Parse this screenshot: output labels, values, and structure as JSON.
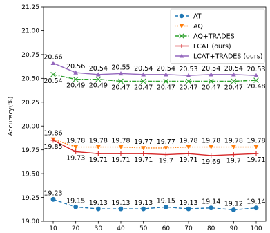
{
  "chart_data": {
    "type": "line",
    "xlabel": "",
    "ylabel": "Accuracy(%)",
    "x": [
      10,
      20,
      30,
      40,
      50,
      60,
      70,
      80,
      90,
      100
    ],
    "ylim": [
      19.0,
      21.25
    ],
    "yticks": [
      "19.00",
      "19.25",
      "19.50",
      "19.75",
      "20.00",
      "20.25",
      "20.50",
      "20.75",
      "21.00",
      "21.25"
    ],
    "ytick_values": [
      19.0,
      19.25,
      19.5,
      19.75,
      20.0,
      20.25,
      20.5,
      20.75,
      21.0,
      21.25
    ],
    "xticks": [
      "10",
      "20",
      "30",
      "40",
      "50",
      "60",
      "70",
      "80",
      "90",
      "100"
    ],
    "legend_position": "top-right",
    "grid": false,
    "series": [
      {
        "name": "AT",
        "color": "#1f77b4",
        "line_style": "dashed",
        "marker": "circle",
        "values": [
          19.23,
          19.15,
          19.13,
          19.13,
          19.13,
          19.15,
          19.13,
          19.14,
          19.12,
          19.14
        ],
        "labels": [
          "19.23",
          "19.15",
          "19.13",
          "19.13",
          "19.13",
          "19.15",
          "19.13",
          "19.14",
          "19.12",
          "19.14"
        ],
        "label_side": "above"
      },
      {
        "name": "AQ",
        "color": "#ff7f0e",
        "line_style": "dotted",
        "marker": "triangle-down",
        "values": [
          19.86,
          19.78,
          19.78,
          19.78,
          19.77,
          19.77,
          19.78,
          19.78,
          19.78,
          19.78
        ],
        "labels": [
          "19.86",
          "19.78",
          "19.78",
          "19.78",
          "19.77",
          "19.77",
          "19.78",
          "19.78",
          "19.78",
          "19.78"
        ],
        "label_side": "above"
      },
      {
        "name": "AQ+TRADES",
        "color": "#2ca02c",
        "line_style": "dashdot",
        "marker": "x",
        "values": [
          20.54,
          20.49,
          20.49,
          20.47,
          20.47,
          20.47,
          20.47,
          20.47,
          20.47,
          20.48
        ],
        "labels": [
          "20.54",
          "20.49",
          "20.49",
          "20.47",
          "20.47",
          "20.47",
          "20.47",
          "20.47",
          "20.47",
          "20.48"
        ],
        "label_side": "below"
      },
      {
        "name": "LCAT (ours)",
        "color": "#d62728",
        "line_style": "solid",
        "marker": "plus",
        "values": [
          19.85,
          19.73,
          19.71,
          19.71,
          19.71,
          19.7,
          19.71,
          19.69,
          19.7,
          19.71
        ],
        "labels": [
          "19.85",
          "19.73",
          "19.71",
          "19.71",
          "19.71",
          "19.7",
          "19.71",
          "19.69",
          "19.7",
          "19.71"
        ],
        "label_side": "below"
      },
      {
        "name": "LCAT+TRADES (ours)",
        "color": "#9467bd",
        "line_style": "solid",
        "marker": "triangle-up",
        "values": [
          20.66,
          20.56,
          20.54,
          20.55,
          20.54,
          20.54,
          20.53,
          20.54,
          20.54,
          20.53
        ],
        "labels": [
          "20.66",
          "20.56",
          "20.54",
          "20.55",
          "20.54",
          "20.54",
          "20.53",
          "20.54",
          "20.54",
          "20.53"
        ],
        "label_side": "above"
      }
    ]
  }
}
